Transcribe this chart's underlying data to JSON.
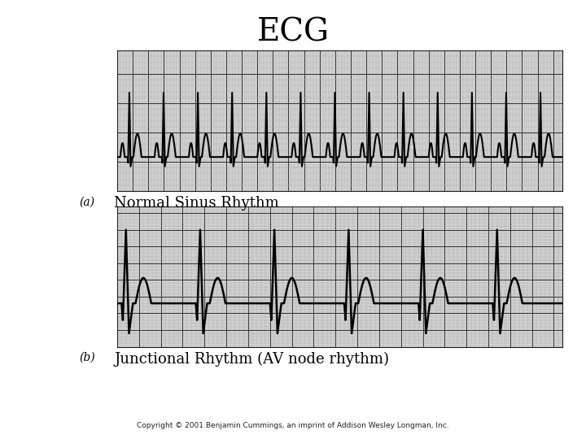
{
  "title": "ECG",
  "title_fontsize": 28,
  "label_a": "(a)",
  "label_b": "(b)",
  "label_a_text": "Normal Sinus Rhythm",
  "label_b_text": "Junctional Rhythm (AV node rhythm)",
  "copyright": "Copyright © 2001 Benjamin Cummings, an imprint of Addison Wesley Longman, Inc.",
  "bg_color": "#ffffff",
  "grid_color_minor": "#aaaaaa",
  "grid_color_major": "#333333",
  "ecg_color": "#000000",
  "panel_bg": "#d0d0d0"
}
